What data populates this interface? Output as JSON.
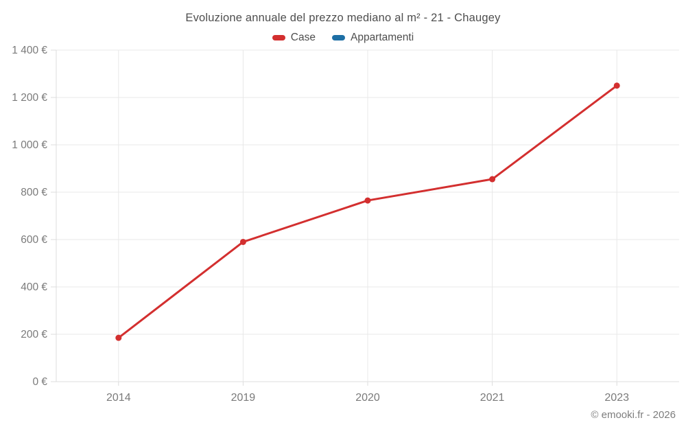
{
  "title": "Evoluzione annuale del prezzo mediano al m² - 21 - Chaugey",
  "copyright": "© emooki.fr - 2026",
  "legend": [
    {
      "label": "Case",
      "color": "#d32f2f"
    },
    {
      "label": "Appartamenti",
      "color": "#1d6fa5"
    }
  ],
  "colors": {
    "case_red": "#d32f2f",
    "appartamenti_blue": "#1d6fa5",
    "grid": "#e8e8e8",
    "axis": "#dcdcdc",
    "tick_text": "#7a7a7a",
    "title_text": "#4e4e4e",
    "background": "#ffffff"
  },
  "chart_data": {
    "type": "line",
    "title": "Evoluzione annuale del prezzo mediano al m² - 21 - Chaugey",
    "categories": [
      "2014",
      "2019",
      "2020",
      "2021",
      "2023"
    ],
    "series": [
      {
        "name": "Case",
        "color": "#d32f2f",
        "values": [
          185,
          590,
          765,
          855,
          1250
        ]
      },
      {
        "name": "Appartamenti",
        "color": "#1d6fa5",
        "values": []
      }
    ],
    "xlabel": "",
    "ylabel": "",
    "ylim": [
      0,
      1400
    ],
    "y_tick_step": 200,
    "y_ticks": [
      "0 €",
      "200 €",
      "400 €",
      "600 €",
      "800 €",
      "1 000 €",
      "1 200 €",
      "1 400 €"
    ],
    "grid": true,
    "legend_position": "top",
    "marker": "circle",
    "unit": "€"
  }
}
